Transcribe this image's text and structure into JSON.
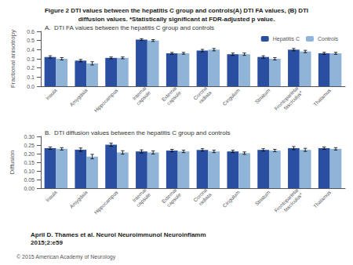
{
  "chart_data": [
    {
      "type": "bar",
      "title": "Figure 2 DTI values between the hepatitis C group and controls(A) DTI FA values, (B) DTI\ndiffusion values. *Statistically significant at FDR-adjusted p value.",
      "subtitle": "A.  DTI FA values between the hepatitis C group and controls",
      "categories": [
        "Insula",
        "Amygdala",
        "Hippocampus",
        "Internal\ncapsule",
        "External\ncapsule",
        "Corona\nradiata",
        "Cingulum",
        "Striatum",
        "Frontoparietal\nfasciculus*",
        "Thalamus"
      ],
      "series": [
        {
          "name": "Hepatitis C",
          "color": "#2B4FA0",
          "values": [
            0.32,
            0.28,
            0.31,
            0.51,
            0.36,
            0.39,
            0.35,
            0.32,
            0.4,
            0.36
          ],
          "errors": [
            0.013,
            0.013,
            0.01,
            0.01,
            0.01,
            0.013,
            0.013,
            0.013,
            0.013,
            0.011
          ]
        },
        {
          "name": "Controls",
          "color": "#8FB4D8",
          "values": [
            0.3,
            0.25,
            0.31,
            0.5,
            0.36,
            0.4,
            0.35,
            0.3,
            0.38,
            0.36
          ],
          "errors": [
            0.013,
            0.018,
            0.01,
            0.01,
            0.01,
            0.013,
            0.013,
            0.013,
            0.013,
            0.011
          ]
        }
      ],
      "ylabel": "Fractional anisotropy",
      "ylim": [
        0,
        0.6
      ],
      "yticks": [
        {
          "value": 0,
          "label": "0.0"
        },
        0.1,
        0.2,
        0.3,
        0.4,
        0.5,
        0.6
      ],
      "grid": false,
      "legend": "upper right"
    },
    {
      "type": "bar",
      "subtitle": "B.  DTI diffusion values between the hepatitis C group and controls",
      "categories": [
        "Insula",
        "Amygdala",
        "Hippocampus",
        "Internal\ncapsule",
        "External\ncapsule",
        "Corona\nradiata",
        "Cingulum",
        "Striatum",
        "Frontoparietal\nfasciculus*",
        "Thalamus"
      ],
      "series": [
        {
          "name": "Hepatitis C",
          "color": "#2B4FA0",
          "values": [
            0.232,
            0.223,
            0.252,
            0.213,
            0.218,
            0.222,
            0.213,
            0.222,
            0.232,
            0.232
          ],
          "errors": [
            0.007,
            0.01,
            0.009,
            0.009,
            0.007,
            0.007,
            0.007,
            0.007,
            0.009,
            0.007
          ]
        },
        {
          "name": "Controls",
          "color": "#8FB4D8",
          "values": [
            0.228,
            0.183,
            0.207,
            0.207,
            0.213,
            0.213,
            0.203,
            0.218,
            0.222,
            0.228
          ],
          "errors": [
            0.007,
            0.013,
            0.01,
            0.009,
            0.007,
            0.007,
            0.007,
            0.007,
            0.009,
            0.007
          ]
        }
      ],
      "ylabel": "Diffusion",
      "ylim": [
        0,
        0.3
      ],
      "yticks": [
        {
          "value": 0,
          "label": "0.00"
        },
        0.05,
        {
          "value": 0.1,
          "label": "0.10"
        },
        0.15,
        {
          "value": 0.2,
          "label": "0.20"
        },
        0.25,
        {
          "value": 0.3,
          "label": "0.30"
        }
      ],
      "grid": false,
      "annotations": [
        "April D. Thames et al. Neurol Neuroimmunol Neuroinfiamm\n2015;2:e59",
        "© 2015 American Academy of Neurology"
      ]
    }
  ]
}
